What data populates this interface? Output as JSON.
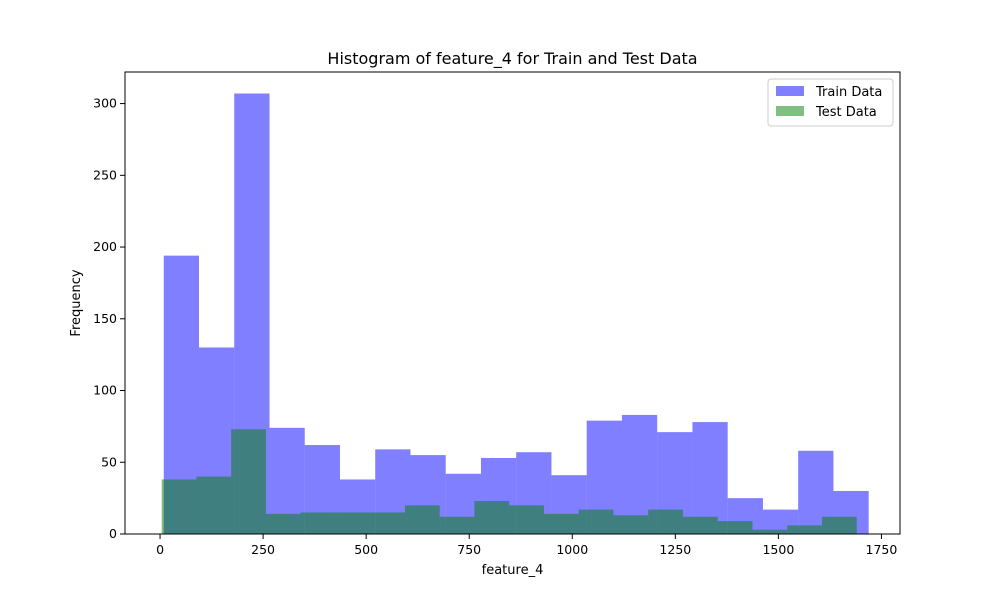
{
  "chart_data": {
    "type": "histogram",
    "title": "Histogram of feature_4 for Train and Test Data",
    "xlabel": "feature_4",
    "ylabel": "Frequency",
    "xlim": [
      -85,
      1795
    ],
    "ylim": [
      0,
      322
    ],
    "xticks": [
      0,
      250,
      500,
      750,
      1000,
      1250,
      1500,
      1750
    ],
    "yticks": [
      0,
      50,
      100,
      150,
      200,
      250,
      300
    ],
    "grid": false,
    "legend_position": "top-right",
    "series": [
      {
        "name": "Train Data",
        "color": "#0000ff",
        "opacity": 0.5,
        "bin_edges": [
          9,
          94.5,
          180,
          265.5,
          351,
          436.5,
          522,
          607.5,
          693,
          778.5,
          864,
          949.5,
          1035,
          1120.5,
          1206,
          1291.5,
          1377,
          1462.5,
          1548,
          1633.5,
          1719
        ],
        "counts": [
          194,
          130,
          307,
          74,
          62,
          38,
          59,
          55,
          42,
          53,
          57,
          41,
          79,
          83,
          71,
          78,
          25,
          17,
          58,
          30
        ]
      },
      {
        "name": "Test Data",
        "color": "#008000",
        "opacity": 0.5,
        "bin_edges": [
          4,
          88.3,
          172.6,
          256.9,
          341.2,
          425.5,
          509.8,
          594.1,
          678.4,
          762.7,
          847,
          931.3,
          1015.6,
          1099.9,
          1184.2,
          1268.5,
          1352.8,
          1437.1,
          1521.4,
          1605.7,
          1690
        ],
        "counts": [
          38,
          40,
          73,
          14,
          15,
          15,
          15,
          20,
          12,
          23,
          20,
          14,
          17,
          13,
          17,
          12,
          9,
          3,
          6,
          12
        ]
      }
    ]
  }
}
